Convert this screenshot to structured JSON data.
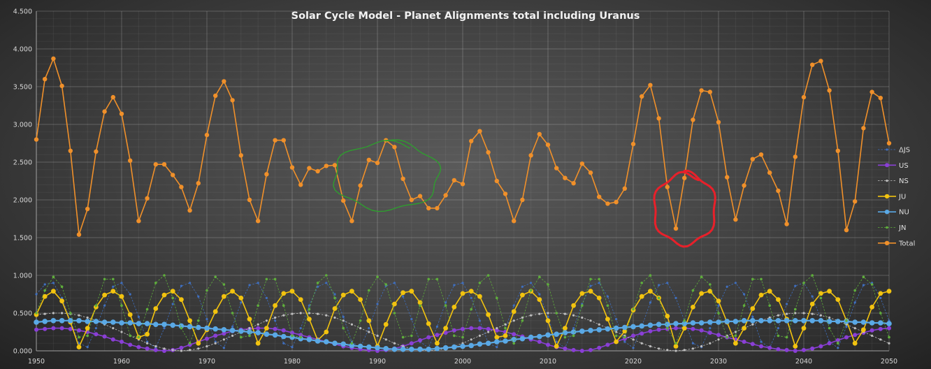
{
  "chart_data": {
    "type": "line",
    "title": "Solar Cycle Model - Planet Alignments total including Uranus",
    "xlabel": "",
    "ylabel": "",
    "xlim": [
      1950,
      2050
    ],
    "ylim": [
      0,
      4.5
    ],
    "x_ticks": [
      "1950",
      "1960",
      "1970",
      "1980",
      "1990",
      "2000",
      "2010",
      "2020",
      "2030",
      "2040",
      "2050"
    ],
    "y_ticks": [
      "0.000",
      "0.500",
      "1.000",
      "1.500",
      "2.000",
      "2.500",
      "3.000",
      "3.500",
      "4.000",
      "4.500"
    ],
    "grid": true,
    "legend_position": "right",
    "x": [
      1950,
      1951,
      1952,
      1953,
      1954,
      1955,
      1956,
      1957,
      1958,
      1959,
      1960,
      1961,
      1962,
      1963,
      1964,
      1965,
      1966,
      1967,
      1968,
      1969,
      1970,
      1971,
      1972,
      1973,
      1974,
      1975,
      1976,
      1977,
      1978,
      1979,
      1980,
      1981,
      1982,
      1983,
      1984,
      1985,
      1986,
      1987,
      1988,
      1989,
      1990,
      1991,
      1992,
      1993,
      1994,
      1995,
      1996,
      1997,
      1998,
      1999,
      2000,
      2001,
      2002,
      2003,
      2004,
      2005,
      2006,
      2007,
      2008,
      2009,
      2010,
      2011,
      2012,
      2013,
      2014,
      2015,
      2016,
      2017,
      2018,
      2019,
      2020,
      2021,
      2022,
      2023,
      2024,
      2025,
      2026,
      2027,
      2028,
      2029,
      2030,
      2031,
      2032,
      2033,
      2034,
      2035,
      2036,
      2037,
      2038,
      2039,
      2040,
      2041,
      2042,
      2043,
      2044,
      2045,
      2046,
      2047,
      2048,
      2049,
      2050
    ],
    "series": [
      {
        "name": "ΔJS",
        "color": "#3f6fbf",
        "marker_size": 1.6,
        "line_width": 0.8,
        "dashed": true,
        "values": [
          0.75,
          0.88,
          0.9,
          0.7,
          0.4,
          0.1,
          0.05,
          0.3,
          0.6,
          0.85,
          0.9,
          0.75,
          0.45,
          0.12,
          0.04,
          0.3,
          0.62,
          0.86,
          0.9,
          0.72,
          0.42,
          0.12,
          0.04,
          0.32,
          0.64,
          0.87,
          0.9,
          0.7,
          0.4,
          0.1,
          0.05,
          0.3,
          0.6,
          0.85,
          0.9,
          0.75,
          0.45,
          0.12,
          0.04,
          0.3,
          0.62,
          0.86,
          0.9,
          0.72,
          0.42,
          0.12,
          0.04,
          0.32,
          0.64,
          0.87,
          0.9,
          0.7,
          0.4,
          0.1,
          0.05,
          0.3,
          0.6,
          0.85,
          0.9,
          0.75,
          0.45,
          0.12,
          0.04,
          0.3,
          0.62,
          0.86,
          0.9,
          0.72,
          0.42,
          0.12,
          0.04,
          0.32,
          0.64,
          0.87,
          0.9,
          0.7,
          0.4,
          0.1,
          0.05,
          0.3,
          0.6,
          0.85,
          0.9,
          0.75,
          0.45,
          0.12,
          0.04,
          0.3,
          0.62,
          0.86,
          0.9,
          0.72,
          0.42,
          0.12,
          0.04,
          0.32,
          0.64,
          0.87,
          0.9,
          0.7,
          0.4
        ]
      },
      {
        "name": "US",
        "color": "#8a3fd6",
        "marker_size": 3,
        "line_width": 1.6,
        "dashed": false,
        "values": [
          0.28,
          0.29,
          0.3,
          0.3,
          0.29,
          0.27,
          0.25,
          0.22,
          0.19,
          0.15,
          0.12,
          0.08,
          0.05,
          0.03,
          0.01,
          0.0,
          0.01,
          0.04,
          0.08,
          0.12,
          0.16,
          0.2,
          0.23,
          0.26,
          0.28,
          0.29,
          0.3,
          0.3,
          0.29,
          0.27,
          0.24,
          0.21,
          0.18,
          0.15,
          0.12,
          0.09,
          0.06,
          0.04,
          0.02,
          0.01,
          0.0,
          0.01,
          0.03,
          0.06,
          0.1,
          0.14,
          0.18,
          0.21,
          0.24,
          0.27,
          0.29,
          0.3,
          0.3,
          0.29,
          0.27,
          0.25,
          0.22,
          0.19,
          0.15,
          0.12,
          0.08,
          0.05,
          0.03,
          0.01,
          0.0,
          0.01,
          0.04,
          0.08,
          0.12,
          0.16,
          0.2,
          0.23,
          0.26,
          0.28,
          0.29,
          0.3,
          0.3,
          0.29,
          0.27,
          0.24,
          0.21,
          0.18,
          0.15,
          0.12,
          0.09,
          0.06,
          0.04,
          0.02,
          0.01,
          0.0,
          0.01,
          0.03,
          0.06,
          0.1,
          0.14,
          0.18,
          0.21,
          0.24,
          0.27,
          0.29,
          0.3
        ]
      },
      {
        "name": "NS",
        "color": "#bfbfbf",
        "marker_size": 1.6,
        "line_width": 0.8,
        "dashed": true,
        "values": [
          0.48,
          0.49,
          0.5,
          0.5,
          0.49,
          0.47,
          0.44,
          0.4,
          0.35,
          0.3,
          0.25,
          0.2,
          0.15,
          0.1,
          0.06,
          0.03,
          0.01,
          0.0,
          0.01,
          0.03,
          0.06,
          0.1,
          0.15,
          0.2,
          0.25,
          0.3,
          0.35,
          0.4,
          0.44,
          0.47,
          0.49,
          0.5,
          0.5,
          0.49,
          0.47,
          0.44,
          0.4,
          0.35,
          0.3,
          0.25,
          0.2,
          0.15,
          0.1,
          0.06,
          0.03,
          0.01,
          0.0,
          0.01,
          0.03,
          0.06,
          0.1,
          0.15,
          0.2,
          0.25,
          0.3,
          0.35,
          0.4,
          0.44,
          0.47,
          0.49,
          0.5,
          0.5,
          0.49,
          0.47,
          0.44,
          0.4,
          0.35,
          0.3,
          0.25,
          0.2,
          0.15,
          0.1,
          0.06,
          0.03,
          0.01,
          0.0,
          0.01,
          0.03,
          0.06,
          0.1,
          0.15,
          0.2,
          0.25,
          0.3,
          0.35,
          0.4,
          0.44,
          0.47,
          0.49,
          0.5,
          0.5,
          0.49,
          0.47,
          0.44,
          0.4,
          0.35,
          0.3,
          0.25,
          0.2,
          0.15,
          0.1
        ]
      },
      {
        "name": "JU",
        "color": "#f2c30f",
        "marker_size": 3.4,
        "line_width": 1.6,
        "dashed": false,
        "values": [
          0.48,
          0.72,
          0.79,
          0.66,
          0.38,
          0.05,
          0.3,
          0.58,
          0.74,
          0.79,
          0.72,
          0.48,
          0.18,
          0.22,
          0.56,
          0.74,
          0.79,
          0.68,
          0.4,
          0.1,
          0.28,
          0.52,
          0.72,
          0.79,
          0.7,
          0.42,
          0.1,
          0.3,
          0.6,
          0.76,
          0.79,
          0.68,
          0.42,
          0.14,
          0.25,
          0.56,
          0.74,
          0.79,
          0.68,
          0.4,
          0.06,
          0.35,
          0.62,
          0.77,
          0.79,
          0.64,
          0.36,
          0.1,
          0.3,
          0.58,
          0.76,
          0.79,
          0.72,
          0.48,
          0.18,
          0.2,
          0.52,
          0.74,
          0.79,
          0.68,
          0.4,
          0.06,
          0.3,
          0.6,
          0.76,
          0.79,
          0.7,
          0.42,
          0.12,
          0.26,
          0.54,
          0.72,
          0.79,
          0.7,
          0.46,
          0.06,
          0.3,
          0.58,
          0.76,
          0.79,
          0.66,
          0.38,
          0.1,
          0.3,
          0.56,
          0.74,
          0.79,
          0.68,
          0.42,
          0.06,
          0.3,
          0.62,
          0.76,
          0.79,
          0.68,
          0.4,
          0.1,
          0.28,
          0.58,
          0.76,
          0.79
        ]
      },
      {
        "name": "NU",
        "color": "#5aa9e6",
        "marker_size": 3.8,
        "line_width": 2.2,
        "dashed": false,
        "values": [
          0.38,
          0.39,
          0.4,
          0.4,
          0.4,
          0.4,
          0.39,
          0.39,
          0.38,
          0.38,
          0.37,
          0.37,
          0.36,
          0.36,
          0.35,
          0.35,
          0.34,
          0.33,
          0.32,
          0.31,
          0.3,
          0.29,
          0.28,
          0.27,
          0.26,
          0.25,
          0.24,
          0.22,
          0.21,
          0.19,
          0.18,
          0.16,
          0.15,
          0.13,
          0.12,
          0.1,
          0.09,
          0.07,
          0.06,
          0.05,
          0.04,
          0.03,
          0.02,
          0.02,
          0.02,
          0.02,
          0.02,
          0.03,
          0.04,
          0.05,
          0.06,
          0.07,
          0.09,
          0.1,
          0.12,
          0.13,
          0.15,
          0.16,
          0.18,
          0.19,
          0.21,
          0.22,
          0.24,
          0.25,
          0.26,
          0.27,
          0.28,
          0.29,
          0.3,
          0.31,
          0.32,
          0.33,
          0.34,
          0.35,
          0.35,
          0.36,
          0.36,
          0.37,
          0.37,
          0.38,
          0.38,
          0.39,
          0.39,
          0.4,
          0.4,
          0.4,
          0.4,
          0.4,
          0.4,
          0.4,
          0.4,
          0.4,
          0.4,
          0.39,
          0.39,
          0.39,
          0.38,
          0.38,
          0.37,
          0.37,
          0.36
        ]
      },
      {
        "name": "JN",
        "color": "#5fae3c",
        "marker_size": 1.8,
        "line_width": 0.8,
        "dashed": true,
        "values": [
          0.5,
          0.8,
          0.98,
          0.85,
          0.5,
          0.18,
          0.2,
          0.6,
          0.95,
          0.95,
          0.6,
          0.2,
          0.18,
          0.55,
          0.9,
          1.0,
          0.7,
          0.3,
          0.1,
          0.4,
          0.8,
          0.98,
          0.88,
          0.5,
          0.18,
          0.2,
          0.6,
          0.95,
          0.95,
          0.6,
          0.2,
          0.18,
          0.55,
          0.9,
          1.0,
          0.7,
          0.3,
          0.1,
          0.4,
          0.8,
          0.98,
          0.88,
          0.5,
          0.18,
          0.2,
          0.6,
          0.95,
          0.95,
          0.6,
          0.2,
          0.18,
          0.55,
          0.9,
          1.0,
          0.7,
          0.3,
          0.1,
          0.4,
          0.8,
          0.98,
          0.88,
          0.5,
          0.18,
          0.2,
          0.6,
          0.95,
          0.95,
          0.6,
          0.2,
          0.18,
          0.55,
          0.9,
          1.0,
          0.7,
          0.3,
          0.1,
          0.4,
          0.8,
          0.98,
          0.88,
          0.5,
          0.18,
          0.2,
          0.6,
          0.95,
          0.95,
          0.6,
          0.2,
          0.18,
          0.55,
          0.9,
          1.0,
          0.7,
          0.3,
          0.1,
          0.4,
          0.8,
          0.98,
          0.88,
          0.5,
          0.18
        ]
      },
      {
        "name": "Total",
        "color": "#f0902a",
        "marker_size": 3.2,
        "line_width": 1.6,
        "dashed": false,
        "values": [
          2.8,
          3.6,
          3.87,
          3.51,
          2.65,
          1.54,
          1.88,
          2.64,
          3.17,
          3.36,
          3.14,
          2.52,
          1.72,
          2.02,
          2.47,
          2.47,
          2.33,
          2.17,
          1.86,
          2.22,
          2.86,
          3.38,
          3.57,
          3.32,
          2.59,
          2.0,
          1.72,
          2.34,
          2.79,
          2.79,
          2.43,
          2.2,
          2.42,
          2.38,
          2.45,
          2.46,
          1.99,
          1.72,
          2.19,
          2.53,
          2.49,
          2.79,
          2.7,
          2.28,
          2.0,
          2.05,
          1.89,
          1.89,
          2.06,
          2.26,
          2.21,
          2.78,
          2.91,
          2.63,
          2.25,
          2.08,
          1.72,
          2.0,
          2.59,
          2.87,
          2.73,
          2.42,
          2.29,
          2.22,
          2.48,
          2.36,
          2.04,
          1.95,
          1.97,
          2.15,
          2.74,
          3.37,
          3.52,
          3.08,
          2.17,
          1.62,
          2.29,
          3.06,
          3.45,
          3.43,
          3.03,
          2.3,
          1.74,
          2.19,
          2.54,
          2.6,
          2.36,
          2.12,
          1.68,
          2.57,
          3.36,
          3.79,
          3.84,
          3.45,
          2.65,
          1.6,
          1.98,
          2.95,
          3.43,
          3.35,
          2.75
        ]
      }
    ],
    "annotations": [
      {
        "shape": "ellipse-scribble",
        "color": "#2e9e2e",
        "center": [
          1991,
          2.32
        ],
        "radius_years": 6.3,
        "radius_value": 0.46
      },
      {
        "shape": "circle-scribble",
        "color": "#e8202a",
        "center": [
          2026,
          1.88
        ],
        "radius_years": 3.7,
        "radius_value": 0.48
      }
    ]
  }
}
